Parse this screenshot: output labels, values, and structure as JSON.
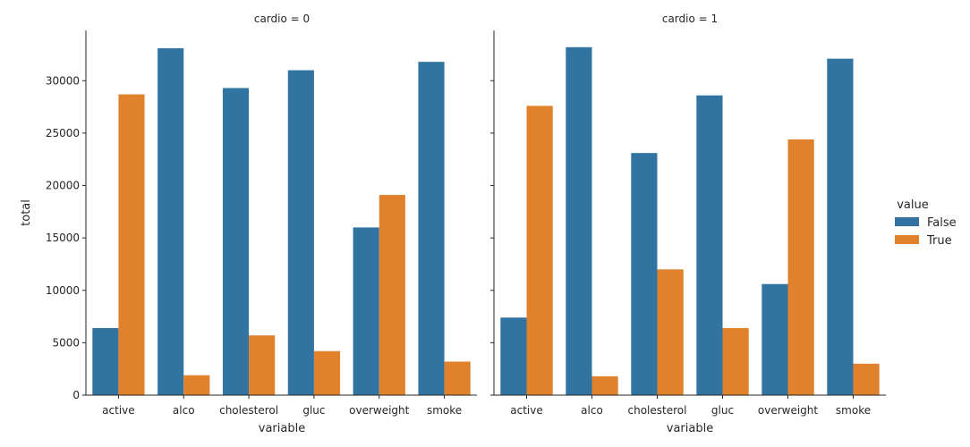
{
  "chart_data": {
    "type": "bar",
    "facet_titles": [
      "cardio = 0",
      "cardio = 1"
    ],
    "xlabel": "variable",
    "ylabel": "total",
    "categories": [
      "active",
      "alco",
      "cholesterol",
      "gluc",
      "overweight",
      "smoke"
    ],
    "ylim": [
      0,
      34800
    ],
    "yticks": [
      0,
      5000,
      10000,
      15000,
      20000,
      25000,
      30000
    ],
    "legend": {
      "title": "value",
      "placement": "right"
    },
    "colors": {
      "False": "#3274a1",
      "True": "#e1812c"
    },
    "panels": [
      {
        "facet": "cardio = 0",
        "series": [
          {
            "name": "False",
            "values": [
              6400,
              33100,
              29300,
              31000,
              16000,
              31800
            ]
          },
          {
            "name": "True",
            "values": [
              28700,
              1900,
              5700,
              4200,
              19100,
              3200
            ]
          }
        ]
      },
      {
        "facet": "cardio = 1",
        "series": [
          {
            "name": "False",
            "values": [
              7400,
              33200,
              23100,
              28600,
              10600,
              32100
            ]
          },
          {
            "name": "True",
            "values": [
              27600,
              1800,
              12000,
              6400,
              24400,
              3000
            ]
          }
        ]
      }
    ]
  }
}
